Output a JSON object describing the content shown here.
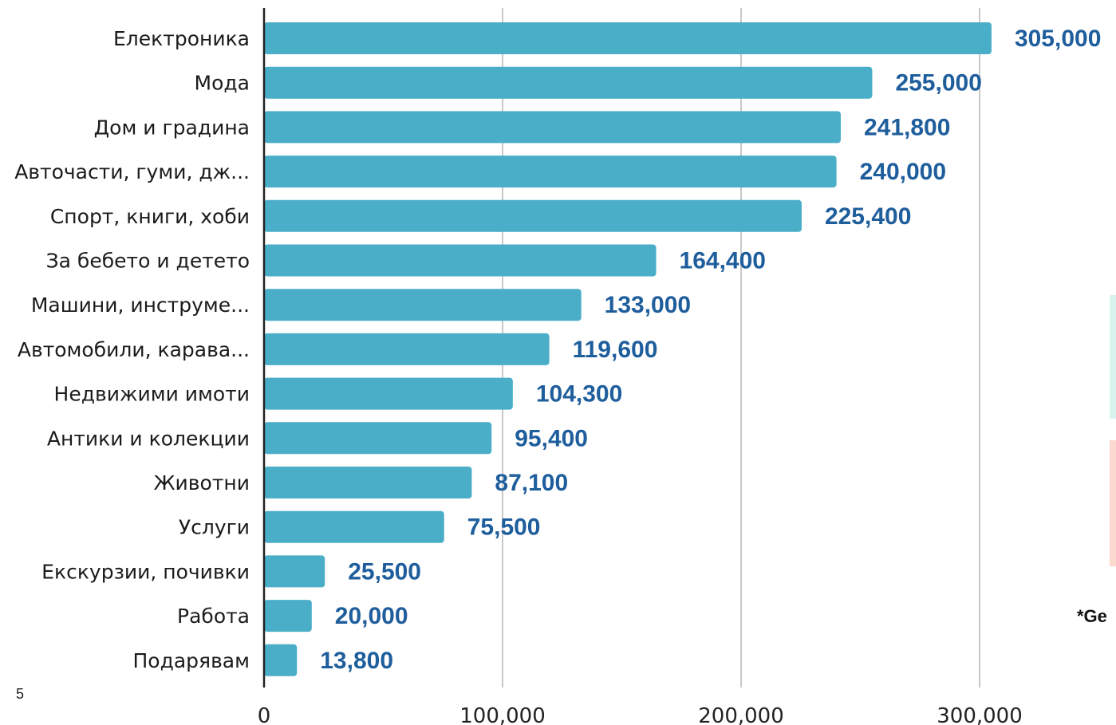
{
  "page_number": "5",
  "side_note": "*Ge",
  "colors": {
    "bar": "#4aaec8",
    "value_label": "#1f5e9c",
    "grid": "#c8c8c8",
    "axis": "#222222",
    "side_block_1": "#d8f3ee",
    "side_block_2": "#fbd9cf"
  },
  "chart_data": {
    "type": "bar",
    "orientation": "horizontal",
    "categories": [
      "Електроника",
      "Мода",
      "Дом и градина",
      "Авточасти, гуми, дж...",
      "Спорт, книги, хоби",
      "За бебето и детето",
      "Машини, инструме...",
      "Автомобили, карава...",
      "Недвижими имоти",
      "Антики и колекции",
      "Животни",
      "Услуги",
      "Екскурзии, почивки",
      "Работа",
      "Подарявам"
    ],
    "values": [
      305000,
      255000,
      241800,
      240000,
      225400,
      164400,
      133000,
      119600,
      104300,
      95400,
      87100,
      75500,
      25500,
      20000,
      13800
    ],
    "value_labels": [
      "305,000",
      "255,000",
      "241,800",
      "240,000",
      "225,400",
      "164,400",
      "133,000",
      "119,600",
      "104,300",
      "95,400",
      "87,100",
      "75,500",
      "25,500",
      "20,000",
      "13,800"
    ],
    "xticks": [
      0,
      100000,
      200000,
      300000
    ],
    "xtick_labels": [
      "0",
      "100,000",
      "200,000",
      "300,000"
    ],
    "xlim": [
      0,
      300000
    ],
    "grid": true,
    "legend": false,
    "title": "",
    "xlabel": "",
    "ylabel": ""
  }
}
